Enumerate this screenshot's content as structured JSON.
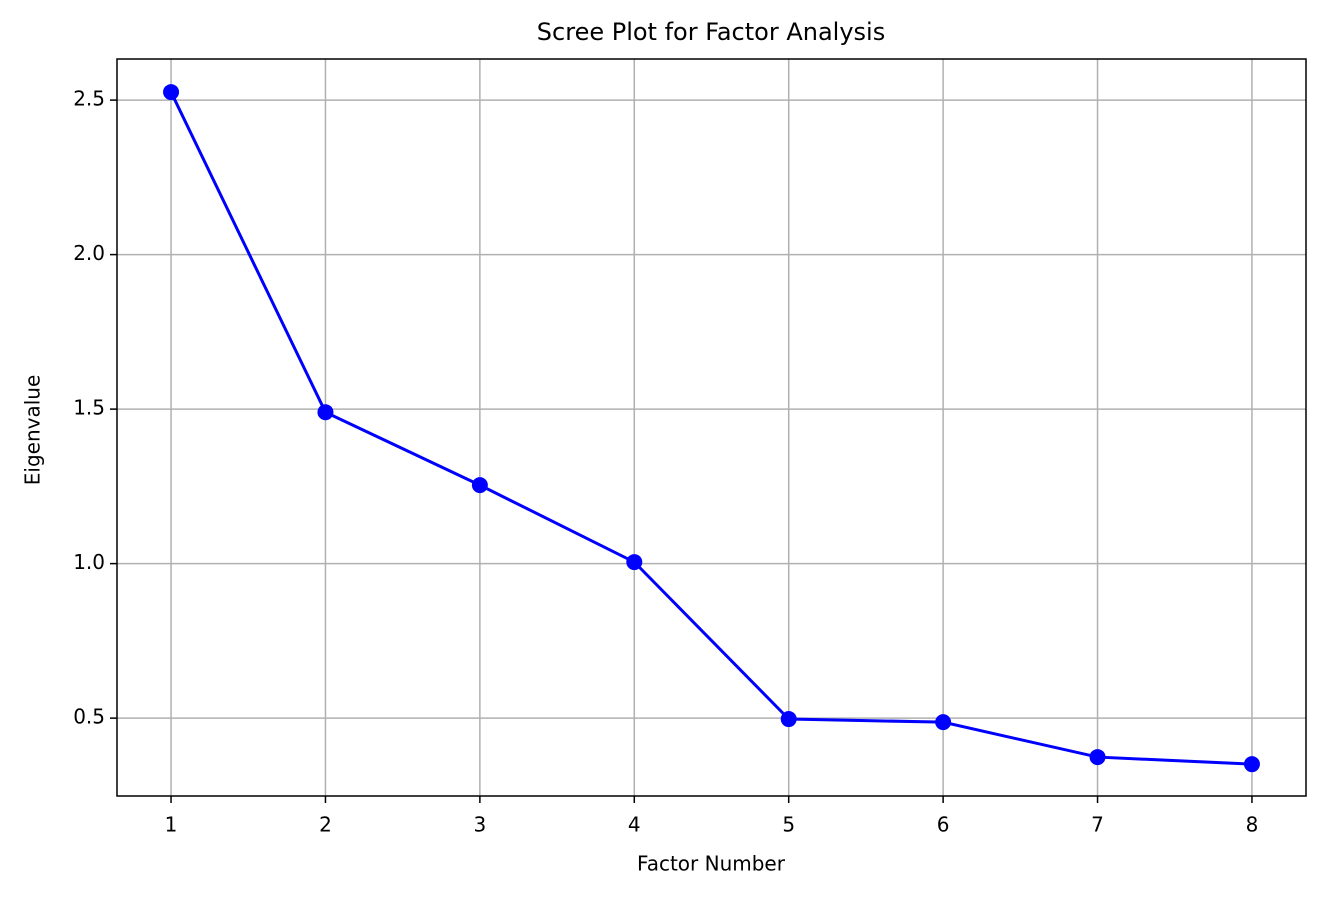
{
  "chart_data": {
    "type": "line",
    "title": "Scree Plot for Factor Analysis",
    "xlabel": "Factor Number",
    "ylabel": "Eigenvalue",
    "x": [
      1,
      2,
      3,
      4,
      5,
      6,
      7,
      8
    ],
    "series": [
      {
        "color": "#0000ff",
        "values": [
          2.526,
          1.49,
          1.254,
          1.005,
          0.497,
          0.487,
          0.374,
          0.351
        ]
      }
    ],
    "xlim": [
      0.65,
      8.35
    ],
    "xticks": [
      1,
      2,
      3,
      4,
      5,
      6,
      7,
      8
    ],
    "ylim": [
      0.248,
      2.633
    ],
    "yticks": [
      0.5,
      {
        "value": 1,
        "label": "1.0"
      },
      1.5,
      {
        "value": 2,
        "label": "2.0"
      },
      2.5
    ],
    "grid": true,
    "marker": "o"
  }
}
